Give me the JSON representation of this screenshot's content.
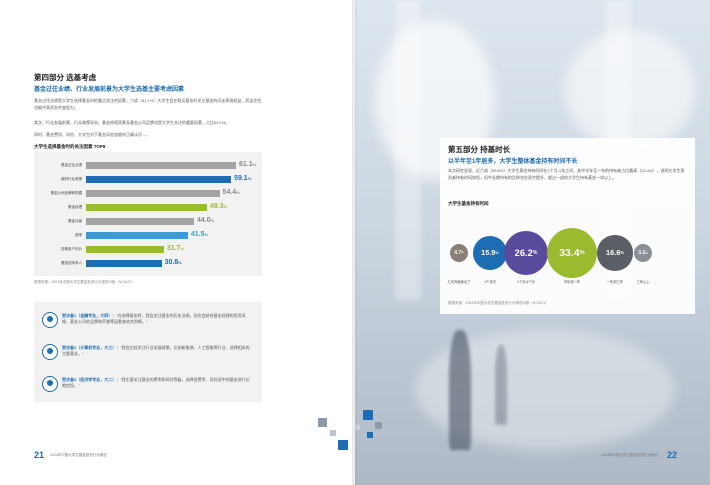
{
  "left": {
    "section_title": "第四部分  选基考虑",
    "subtitle": "基金过往业绩、行业发展前景为大学生选基主要考虑因素",
    "para1": "基金过往业绩是大学生选择基金时的重点关注的因素，六成（61.1%）大学生会在购买基金时关注基金的历史表现收益，而这往往也能代表资金的变现力。",
    "para2": "其次，行业发展前景、行业政策导向、基金经理背景及基金公司品牌也是大学生关注的重要因素，占比59.1%。",
    "para3": "同时，基金费用、风险、大学生对于基金风险态度的正确认识...。",
    "chart_caption": "大学生选择基金时的关注因素 TOP8",
    "chart_source": "数据来源：2024年中国大学生基金投资行为调查问卷（N=9421）",
    "quotes": [
      {
        "who": "受访者1（金融专业，大四）：",
        "text": "“在选择基金时，我会关注基金的历史业绩，但也会结合基金经理的投资风格、基金公司的品牌和声誉等因素来综合判断。”"
      },
      {
        "who": "受访者2（计算机专业，大三）：",
        "text": "“我会比较关注行业发展前景，比如新能源、人工智能等行业，选择相关的主题基金。”"
      },
      {
        "who": "受访者3（经济学专业，大二）：",
        "text": "“我主要关注基金的费率和风险等级，选择低费率、风险适中的基金进行长期定投。”"
      }
    ],
    "page_number": "21",
    "footer": "2024年中国大学生基金投资行为报告"
  },
  "chart_data": [
    {
      "type": "bar",
      "orientation": "horizontal",
      "title": "大学生选择基金时的关注因素 TOP8",
      "categories": [
        "基金过往业绩",
        "政府行业政策",
        "基金公司品牌和规模",
        "基金经理",
        "基金评级",
        "费率",
        "持基用户评价",
        "基金的持有人"
      ],
      "values": [
        61.1,
        59.1,
        54.4,
        49.3,
        44.0,
        41.5,
        31.7,
        30.8
      ],
      "colors": [
        "#a3a3a3",
        "#1c6db4",
        "#a3a3a3",
        "#9bbb2e",
        "#a3a3a3",
        "#3a9bd6",
        "#9bbb2e",
        "#1c6db4"
      ],
      "unit": "%"
    },
    {
      "type": "bubble",
      "title": "大学生基金持有时间",
      "categories": [
        "几天内就卖出了",
        "1个月内",
        "1个月-6个月",
        "半年到一年",
        "一年到三年",
        "三年以上"
      ],
      "values": [
        4.7,
        15.9,
        26.2,
        33.4,
        16.6,
        3.2
      ],
      "colors": [
        "#8a7f78",
        "#1c6db4",
        "#5a4a9e",
        "#9bbb2e",
        "#5a5f66",
        "#8a8f96"
      ],
      "unit": "%"
    }
  ],
  "right": {
    "section_title": "第五部分  持基时长",
    "subtitle": "以半年至1年居多，大学生整体基金持有时间不长",
    "para": "本次研究发现，近六成（59.6%）大学生基金持有时间在1个月-1年之间，其中半年至一年的持有者占比最高（33.4%），说明大学生投资者持有时间较短，但中长期持有的比例也在逐步提升，超过一成的大学生持有基金一年以上。",
    "chart_caption": "大学生基金持有时间",
    "chart_source": "数据来源：2024年中国大学生基金投资行为调查问卷（N=9421）",
    "page_number": "22",
    "footer": "2024年中国大学生基金投资行为报告"
  }
}
